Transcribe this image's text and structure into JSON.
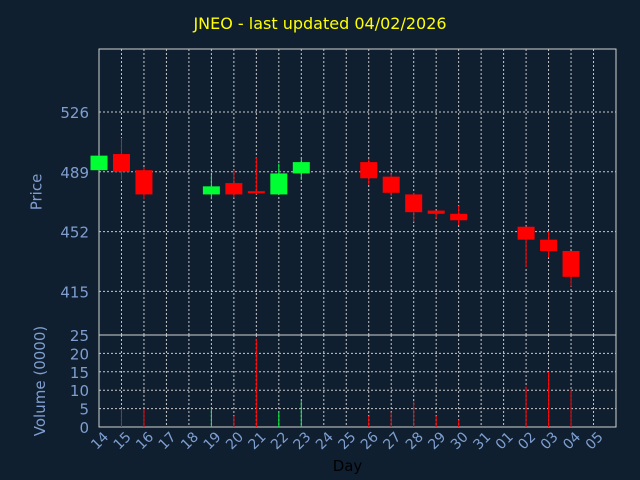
{
  "title": "JNEO - last updated 04/02/2026",
  "colors": {
    "up": "#00ff33",
    "down": "#ff0000",
    "axis_text": "#7f9fd0",
    "title": "#ffff00",
    "grid": "#c8c8c8",
    "background": "#0f1f30"
  },
  "chart_data": [
    {
      "type": "candlestick",
      "ylabel": "Price",
      "yticks": [
        415,
        452,
        489,
        526
      ],
      "ylim": [
        388,
        565
      ],
      "grid": true,
      "candles": [
        {
          "day": "14",
          "open": 490,
          "high": 499,
          "low": 490,
          "close": 499
        },
        {
          "day": "15",
          "open": 500,
          "high": 510,
          "low": 484,
          "close": 489
        },
        {
          "day": "16",
          "open": 490,
          "high": 492,
          "low": 472,
          "close": 475
        },
        {
          "day": "19",
          "open": 475,
          "high": 487,
          "low": 472,
          "close": 480
        },
        {
          "day": "20",
          "open": 482,
          "high": 490,
          "low": 473,
          "close": 475
        },
        {
          "day": "21",
          "open": 477,
          "high": 498,
          "low": 475,
          "close": 476
        },
        {
          "day": "22",
          "open": 475,
          "high": 494,
          "low": 475,
          "close": 488
        },
        {
          "day": "23",
          "open": 488,
          "high": 497,
          "low": 484,
          "close": 495
        },
        {
          "day": "26",
          "open": 495,
          "high": 497,
          "low": 481,
          "close": 485
        },
        {
          "day": "27",
          "open": 486,
          "high": 488,
          "low": 474,
          "close": 476
        },
        {
          "day": "28",
          "open": 475,
          "high": 476,
          "low": 458,
          "close": 464
        },
        {
          "day": "29",
          "open": 465,
          "high": 465,
          "low": 460,
          "close": 463
        },
        {
          "day": "30",
          "open": 463,
          "high": 468,
          "low": 456,
          "close": 459
        },
        {
          "day": "02",
          "open": 455,
          "high": 455,
          "low": 430,
          "close": 447
        },
        {
          "day": "03",
          "open": 447,
          "high": 452,
          "low": 436,
          "close": 440
        },
        {
          "day": "04",
          "open": 440,
          "high": 440,
          "low": 418,
          "close": 424
        }
      ]
    },
    {
      "type": "bar",
      "ylabel": "Volume (0000)",
      "xlabel": "Day",
      "yticks": [
        0,
        5,
        10,
        15,
        20,
        25
      ],
      "ylim": [
        0,
        25
      ],
      "grid": true,
      "categories": [
        "14",
        "15",
        "16",
        "17",
        "18",
        "19",
        "20",
        "21",
        "22",
        "23",
        "24",
        "25",
        "26",
        "27",
        "28",
        "29",
        "30",
        "31",
        "01",
        "02",
        "03",
        "04",
        "05"
      ],
      "values": [
        {
          "day": "15",
          "volume": 5,
          "direction": "down"
        },
        {
          "day": "16",
          "volume": 5,
          "direction": "down"
        },
        {
          "day": "19",
          "volume": 5,
          "direction": "up"
        },
        {
          "day": "20",
          "volume": 3,
          "direction": "down"
        },
        {
          "day": "21",
          "volume": 24,
          "direction": "down"
        },
        {
          "day": "22",
          "volume": 4,
          "direction": "up"
        },
        {
          "day": "23",
          "volume": 7,
          "direction": "up"
        },
        {
          "day": "26",
          "volume": 3,
          "direction": "down"
        },
        {
          "day": "27",
          "volume": 4,
          "direction": "down"
        },
        {
          "day": "28",
          "volume": 7,
          "direction": "down"
        },
        {
          "day": "29",
          "volume": 3,
          "direction": "down"
        },
        {
          "day": "30",
          "volume": 2,
          "direction": "down"
        },
        {
          "day": "02",
          "volume": 11,
          "direction": "down"
        },
        {
          "day": "03",
          "volume": 15,
          "direction": "down"
        },
        {
          "day": "04",
          "volume": 10,
          "direction": "down"
        }
      ]
    }
  ]
}
